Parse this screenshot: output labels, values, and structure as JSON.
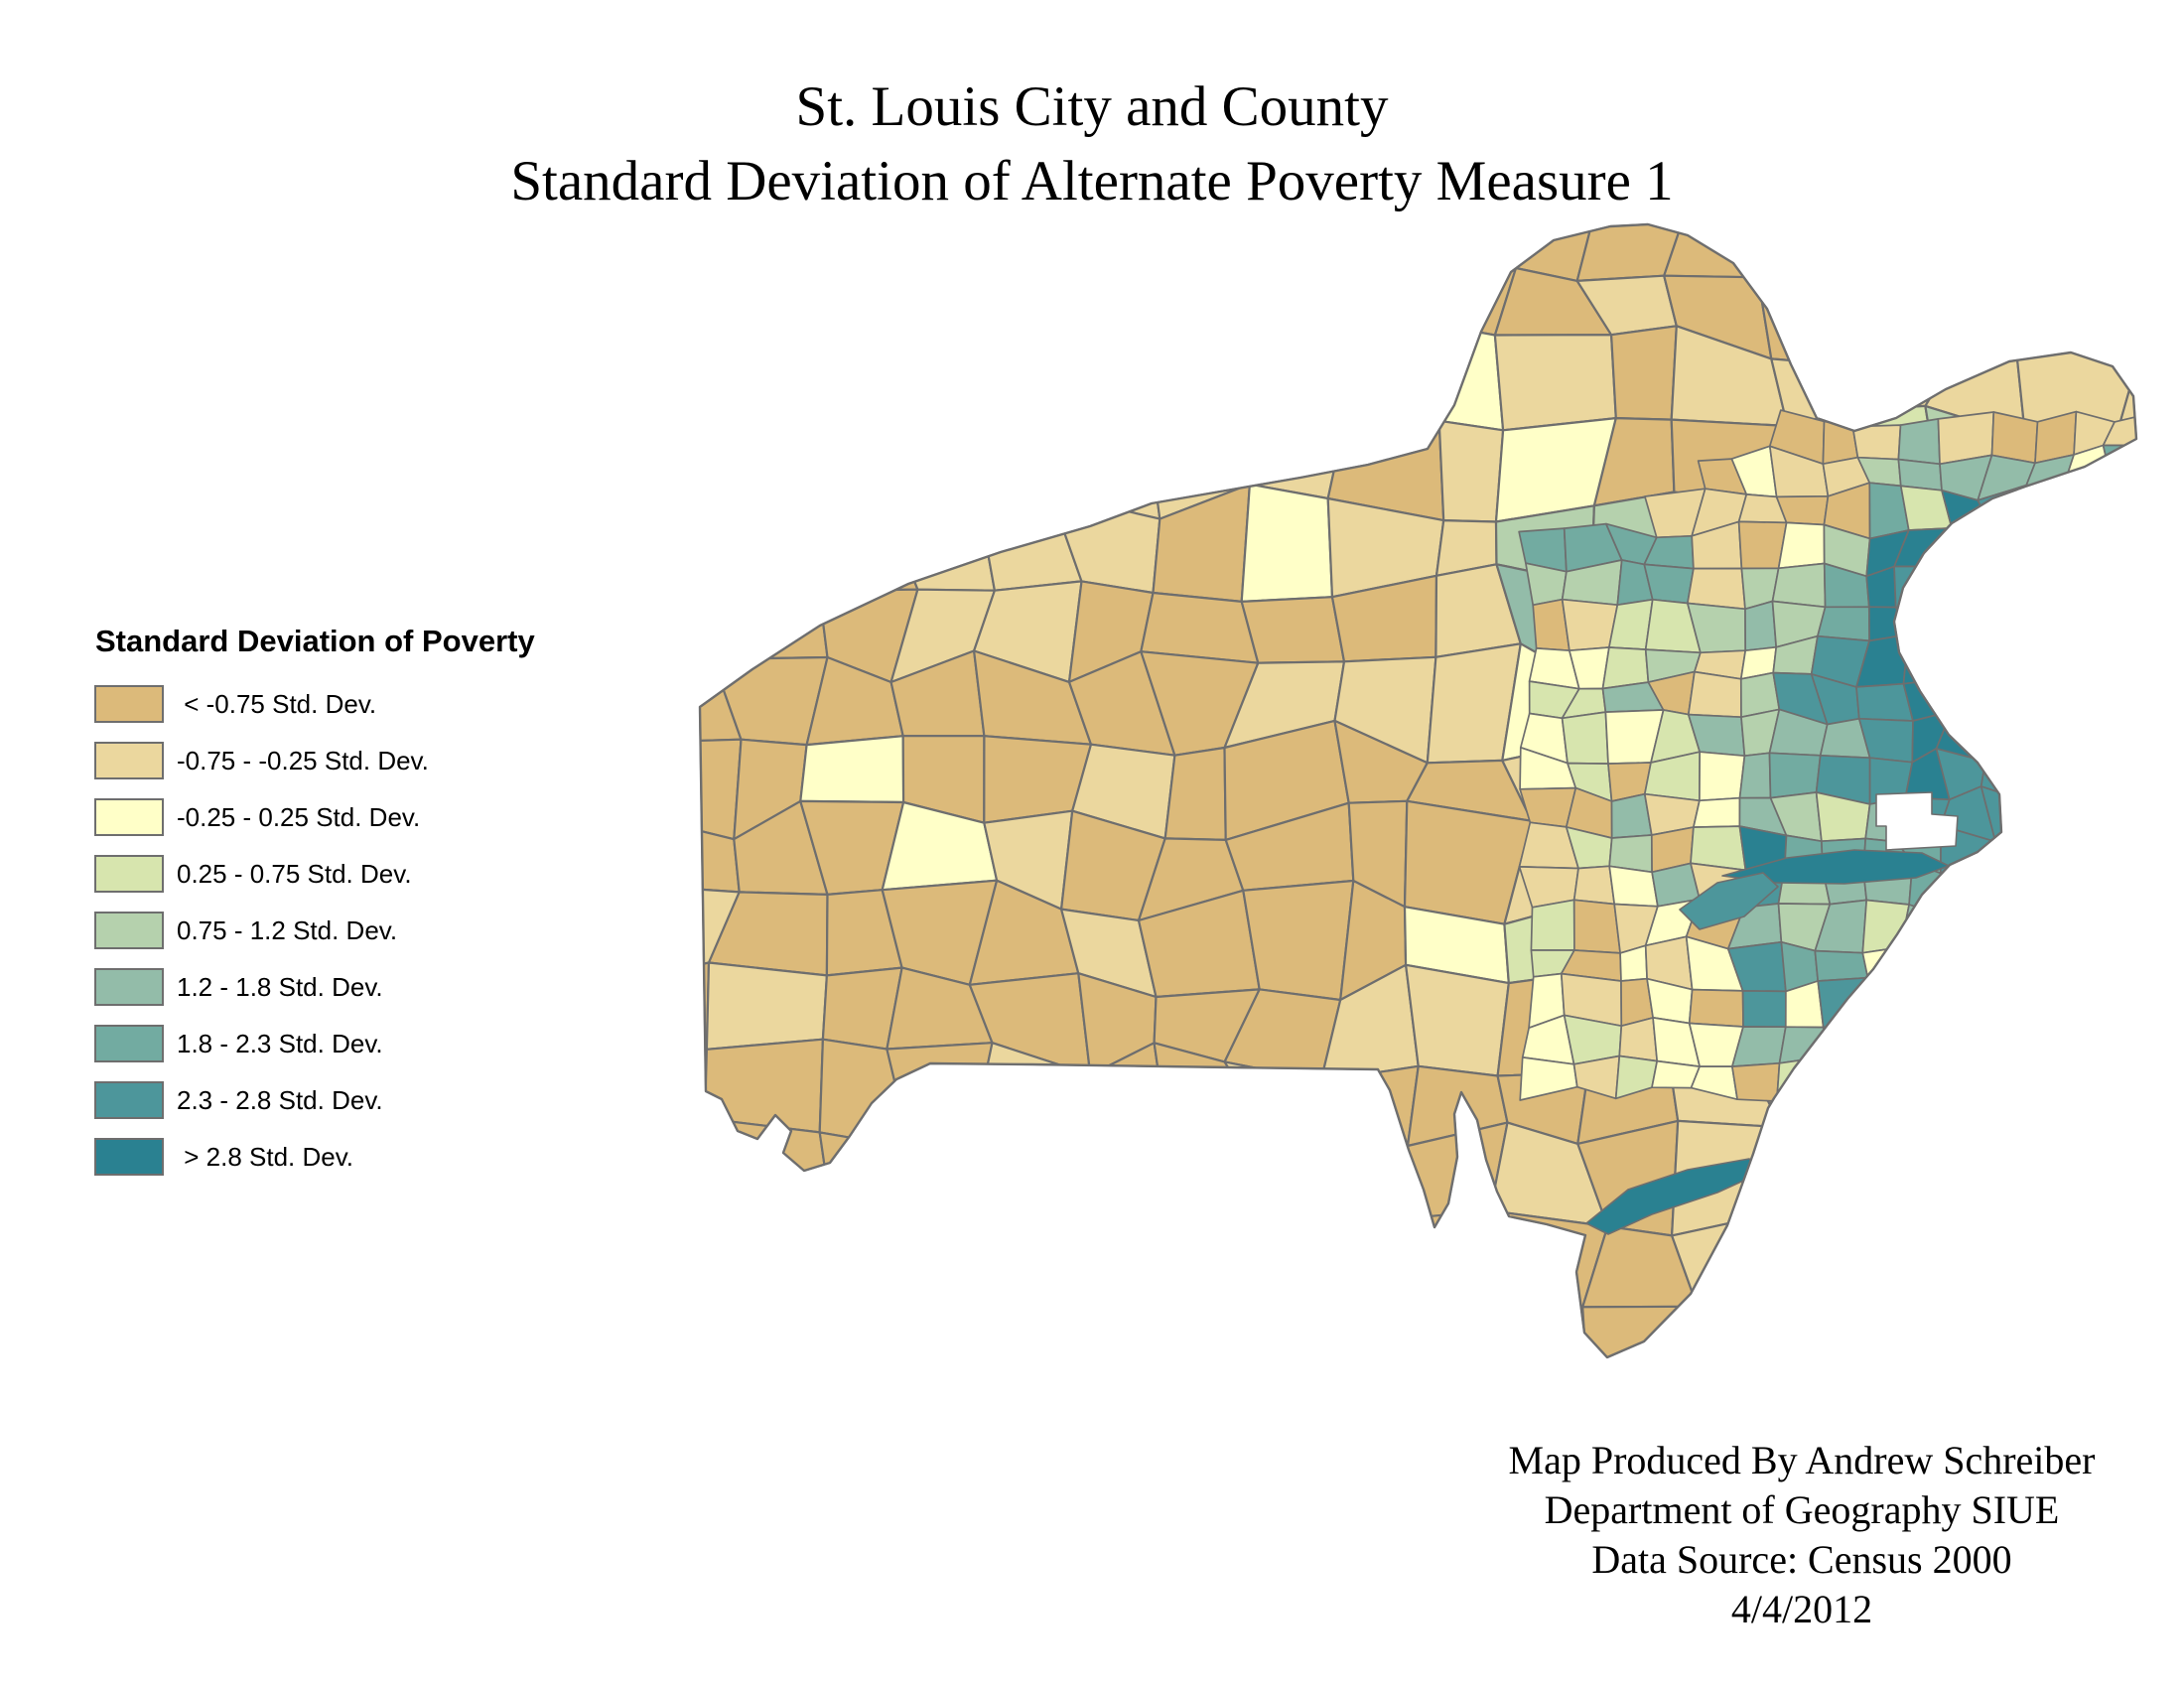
{
  "title": {
    "line1": "St. Louis City and County",
    "line2": "Standard Deviation of Alternate Poverty Measure 1"
  },
  "legend": {
    "title": "Standard Deviation of Poverty",
    "classes": [
      {
        "label": " < -0.75 Std. Dev.",
        "color": "#dcba7a"
      },
      {
        "label": "-0.75 - -0.25 Std. Dev.",
        "color": "#ebd79e"
      },
      {
        "label": "-0.25 - 0.25 Std. Dev.",
        "color": "#ffffc8"
      },
      {
        "label": "0.25 - 0.75 Std. Dev.",
        "color": "#d7e5ae"
      },
      {
        "label": "0.75 - 1.2 Std. Dev.",
        "color": "#b5d1ad"
      },
      {
        "label": "1.2 - 1.8 Std. Dev.",
        "color": "#93bca9"
      },
      {
        "label": "1.8 - 2.3 Std. Dev.",
        "color": "#72aba1"
      },
      {
        "label": "2.3 - 2.8 Std. Dev.",
        "color": "#4d969b"
      },
      {
        "label": " > 2.8 Std. Dev.",
        "color": "#2a8191"
      }
    ]
  },
  "map": {
    "tract_border_color": "#6e6e6e",
    "county_outline_color": "#6e6e6e",
    "excluded_area_color": "#ffffff",
    "background_color": "#ffffff"
  },
  "credits": {
    "lines": [
      "Map Produced By Andrew Schreiber",
      "Department of Geography SIUE",
      "Data Source: Census 2000",
      "4/4/2012"
    ]
  }
}
